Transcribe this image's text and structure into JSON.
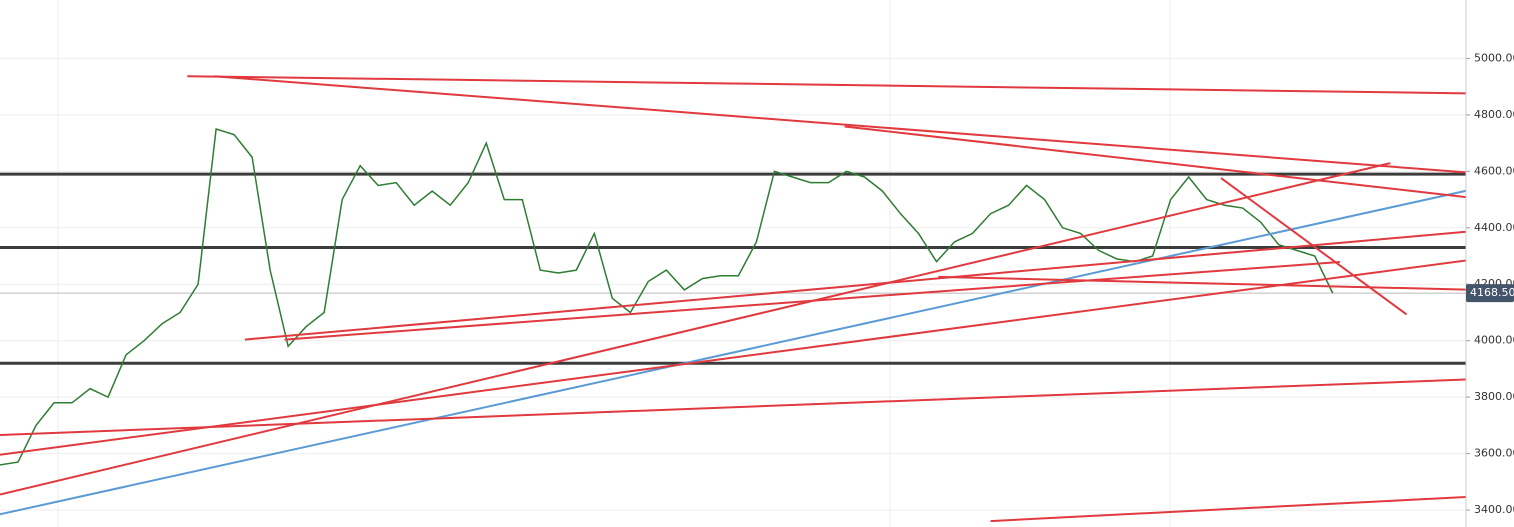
{
  "chart_data": {
    "type": "line",
    "x": [
      0,
      1,
      2,
      3,
      4,
      5,
      6,
      7,
      8,
      9,
      10,
      11,
      12,
      13,
      14,
      15,
      16,
      17,
      18,
      19,
      20,
      21,
      22,
      23,
      24,
      25,
      26,
      27,
      28,
      29,
      30,
      31,
      32,
      33,
      34,
      35,
      36,
      37,
      38,
      39,
      40,
      41,
      42,
      43,
      44,
      45,
      46,
      47,
      48,
      49,
      50,
      51,
      52,
      53,
      54,
      55,
      56,
      57,
      58,
      59,
      60,
      61,
      62,
      63,
      64,
      65,
      66,
      67,
      68,
      69,
      70,
      71,
      72,
      73,
      74
    ],
    "series": [
      {
        "color": "#2e7d32",
        "values": [
          3560,
          3570,
          3700,
          3780,
          3780,
          3830,
          3800,
          3950,
          4000,
          4060,
          4100,
          4200,
          4750,
          4730,
          4650,
          4250,
          3980,
          4050,
          4100,
          4500,
          4620,
          4550,
          4560,
          4480,
          4530,
          4480,
          4560,
          4700,
          4500,
          4500,
          4250,
          4240,
          4250,
          4380,
          4150,
          4100,
          4210,
          4250,
          4180,
          4220,
          4230,
          4230,
          4350,
          4600,
          4580,
          4560,
          4560,
          4600,
          4580,
          4530,
          4450,
          4380,
          4280,
          4350,
          4380,
          4450,
          4480,
          4550,
          4500,
          4400,
          4380,
          4320,
          4290,
          4280,
          4300,
          4500,
          4580,
          4500,
          4480,
          4470,
          4420,
          4340,
          4320,
          4300,
          4168.5
        ]
      }
    ],
    "xlim": [
      0,
      81.4
    ],
    "ylim": [
      3340,
      5207
    ],
    "yticks": [
      {
        "value": 5000,
        "label": "5000.00"
      },
      {
        "value": 4800,
        "label": "4800.00"
      },
      {
        "value": 4600,
        "label": "4600.00"
      },
      {
        "value": 4400,
        "label": "4400.00"
      },
      {
        "value": 4200,
        "label": "4200.00"
      },
      {
        "value": 4000,
        "label": "4000.00"
      },
      {
        "value": 3800,
        "label": "3800.00"
      },
      {
        "value": 3600,
        "label": "3600.00"
      },
      {
        "value": 3400,
        "label": "3400.00"
      }
    ],
    "levels": [
      4590,
      4330,
      3920
    ],
    "level_color": "#3c3c3c",
    "trendlines": [
      {
        "color": "#e0393e",
        "x": [
          10.4,
          84.1
        ],
        "y": [
          4937,
          4874
        ]
      },
      {
        "color": "#e0393e",
        "x": [
          11.9,
          84.1
        ],
        "y": [
          4937,
          4583
        ]
      },
      {
        "color": "#5b9bd5",
        "x": [
          0,
          84.1
        ],
        "y": [
          3385,
          4569
        ]
      },
      {
        "color": "#e0393e",
        "x": [
          13.6,
          84.1
        ],
        "y": [
          4004,
          4401
        ]
      },
      {
        "color": "#e0393e",
        "x": [
          0,
          84.1
        ],
        "y": [
          3596,
          4307
        ]
      },
      {
        "color": "#e0393e",
        "x": [
          0,
          77.2
        ],
        "y": [
          3455,
          4629
        ]
      },
      {
        "color": "#e0393e",
        "x": [
          0,
          84.1
        ],
        "y": [
          3666,
          3869
        ]
      },
      {
        "color": "#e0393e",
        "x": [
          46.9,
          84.1
        ],
        "y": [
          4759,
          4489
        ]
      },
      {
        "color": "#e0393e",
        "x": [
          67.8,
          78.1
        ],
        "y": [
          4576,
          4093
        ]
      },
      {
        "color": "#e0393e",
        "x": [
          52.1,
          84.1
        ],
        "y": [
          4226,
          4177
        ]
      },
      {
        "color": "#e0393e",
        "x": [
          55,
          84.1
        ],
        "y": [
          3361,
          3455
        ]
      },
      {
        "color": "#e0393e",
        "x": [
          15.8,
          74.4
        ],
        "y": [
          4004,
          4279
        ]
      }
    ],
    "price_label": {
      "value": 4168.5,
      "label": "4168.50"
    },
    "price_label_color": "#44546a"
  }
}
